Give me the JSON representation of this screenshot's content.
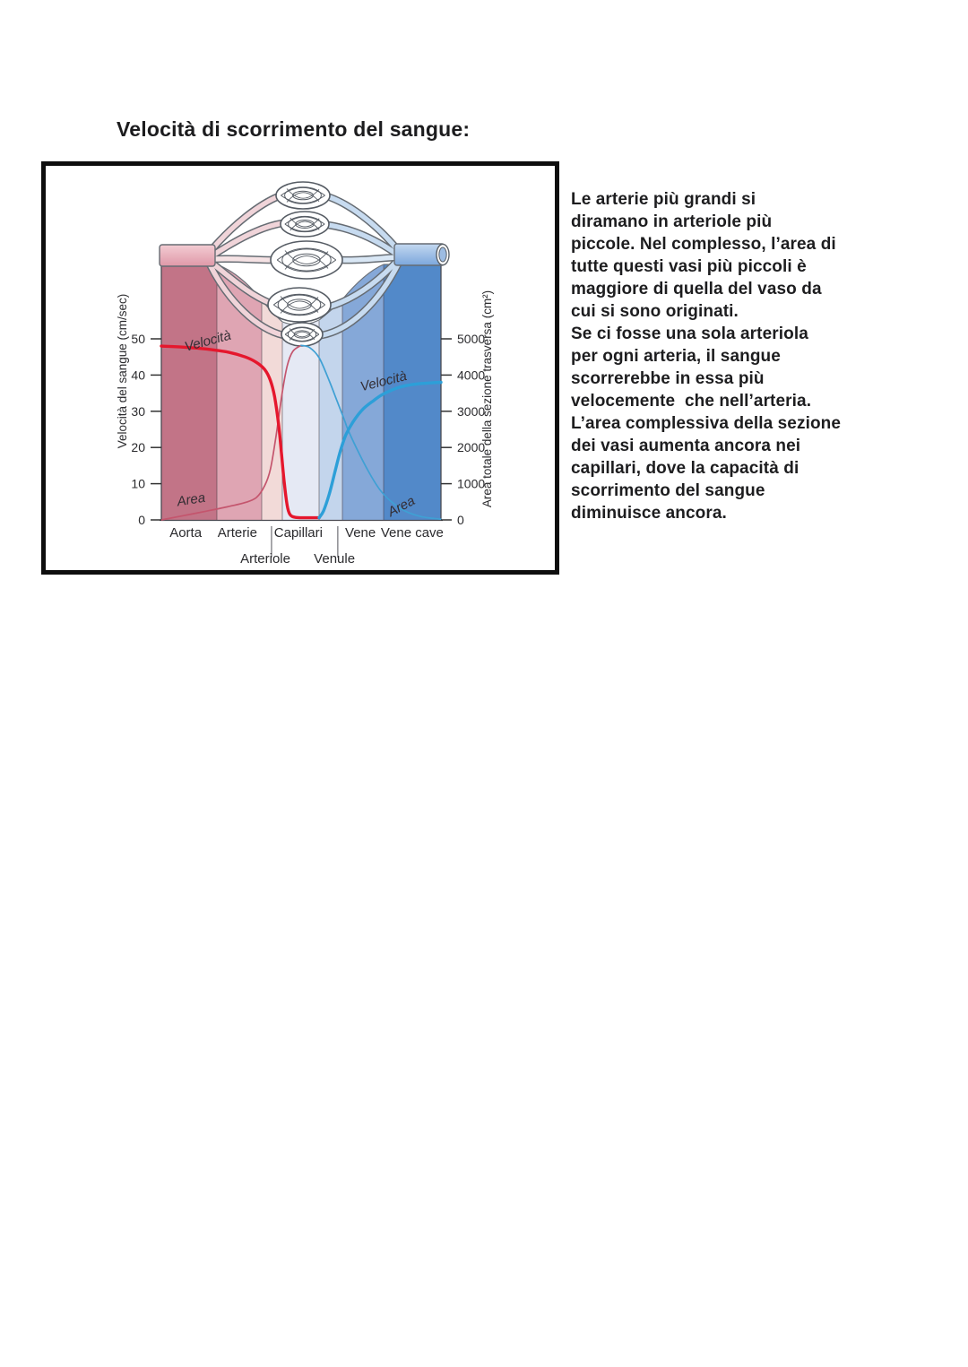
{
  "page": {
    "title": "Velocità di scorrimento del sangue:",
    "body_lines": [
      "Le arterie più grandi si",
      "diramano in arteriole più",
      "piccole. Nel complesso, l’area di",
      "tutte questi vasi più piccoli è",
      "maggiore di quella del vaso da",
      "cui si sono originati.",
      "Se ci fosse una sola arteriola",
      "per ogni arteria, il sangue",
      "scorrerebbe in essa più",
      "velocemente  che nell’arteria.",
      "L’area complessiva della sezione",
      "dei vasi aumenta ancora nei",
      "capillari, dove la capacità di",
      "scorrimento del sangue",
      "diminuisce ancora."
    ]
  },
  "chart_data": {
    "type": "line",
    "title": "",
    "x_axis": {
      "categories": [
        "Aorta",
        "Arterie",
        "Capillari",
        "Vene",
        "Vene cave"
      ],
      "sub_categories": [
        "Arteriole",
        "Venule"
      ]
    },
    "y_left": {
      "label": "Velocità del sangue (cm/sec)",
      "ticks": [
        0,
        10,
        20,
        30,
        40,
        50
      ],
      "range": [
        0,
        50
      ]
    },
    "y_right": {
      "label": "Area totale della sezione trasversa (cm²)",
      "ticks": [
        0,
        1000,
        2000,
        3000,
        4000,
        5000
      ],
      "range": [
        0,
        5000
      ]
    },
    "bands": [
      {
        "name": "Aorta",
        "color": "#c27487"
      },
      {
        "name": "Arterie",
        "color": "#dfa5b3"
      },
      {
        "name": "Arteriole",
        "color": "#f2dad8"
      },
      {
        "name": "Capillari",
        "color": "#e5e9f4"
      },
      {
        "name": "Venule",
        "color": "#c3d5ec"
      },
      {
        "name": "Vene",
        "color": "#85a8d8"
      },
      {
        "name": "Vene cave",
        "color": "#5289c9"
      }
    ],
    "series": [
      {
        "name": "Velocità",
        "axis": "left",
        "segment": "arterial",
        "color": "#e5172d",
        "width": 3.4,
        "points": [
          [
            0,
            48
          ],
          [
            0.08,
            47.7
          ],
          [
            0.16,
            47.2
          ],
          [
            0.24,
            46.3
          ],
          [
            0.3,
            45
          ],
          [
            0.34,
            43.5
          ],
          [
            0.37,
            41.5
          ],
          [
            0.39,
            38.5
          ],
          [
            0.405,
            34
          ],
          [
            0.42,
            26
          ],
          [
            0.43,
            18
          ],
          [
            0.44,
            10
          ],
          [
            0.45,
            4
          ],
          [
            0.46,
            1.5
          ],
          [
            0.48,
            0.7
          ],
          [
            0.52,
            0.6
          ],
          [
            0.564,
            0.6
          ]
        ]
      },
      {
        "name": "Velocità",
        "axis": "left",
        "segment": "venous",
        "color": "#2d9fd8",
        "width": 3.4,
        "points": [
          [
            0.564,
            0.6
          ],
          [
            0.58,
            2.5
          ],
          [
            0.6,
            7
          ],
          [
            0.62,
            13
          ],
          [
            0.64,
            19
          ],
          [
            0.66,
            23.5
          ],
          [
            0.685,
            27
          ],
          [
            0.72,
            30.5
          ],
          [
            0.76,
            33
          ],
          [
            0.795,
            34.8
          ],
          [
            0.85,
            36.6
          ],
          [
            0.91,
            37.5
          ],
          [
            1,
            38
          ]
        ]
      },
      {
        "name": "Area",
        "axis": "right",
        "segment": "arterial",
        "color": "#c4556d",
        "width": 1.7,
        "points": [
          [
            0,
            0
          ],
          [
            0.08,
            120
          ],
          [
            0.16,
            240
          ],
          [
            0.24,
            370
          ],
          [
            0.3,
            480
          ],
          [
            0.34,
            620
          ],
          [
            0.37,
            950
          ],
          [
            0.39,
            1400
          ],
          [
            0.41,
            2300
          ],
          [
            0.43,
            3400
          ],
          [
            0.45,
            4250
          ],
          [
            0.47,
            4650
          ],
          [
            0.5,
            4820
          ]
        ]
      },
      {
        "name": "Area",
        "axis": "right",
        "segment": "venous",
        "color": "#3fa0d4",
        "width": 1.7,
        "points": [
          [
            0.5,
            4820
          ],
          [
            0.53,
            4760
          ],
          [
            0.564,
            4480
          ],
          [
            0.6,
            3850
          ],
          [
            0.63,
            3250
          ],
          [
            0.655,
            2750
          ],
          [
            0.667,
            2500
          ],
          [
            0.7,
            1950
          ],
          [
            0.74,
            1350
          ],
          [
            0.78,
            850
          ],
          [
            0.82,
            520
          ],
          [
            0.87,
            250
          ],
          [
            0.93,
            90
          ],
          [
            1,
            20
          ]
        ]
      }
    ],
    "grid": false,
    "legend": "none"
  }
}
